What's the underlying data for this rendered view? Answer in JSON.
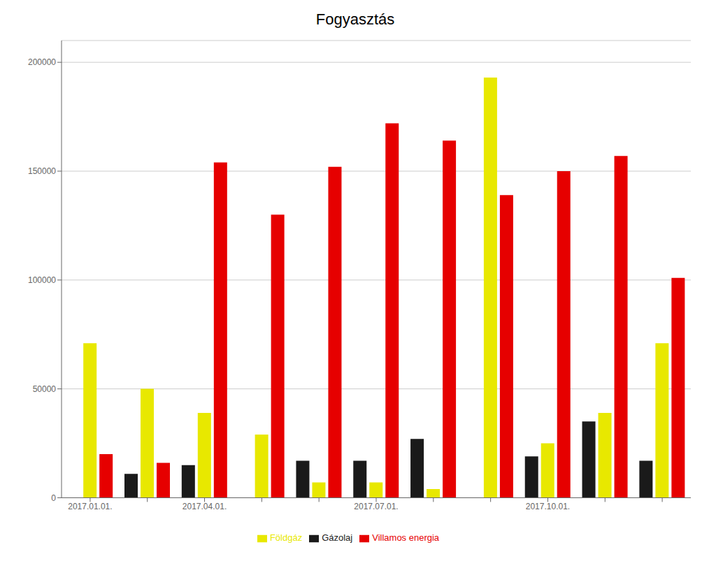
{
  "chart_data": {
    "type": "bar",
    "title": "Fogyasztás",
    "categories": [
      "2017.01.01.",
      null,
      "2017.04.01.",
      null,
      null,
      "2017.07.01.",
      null,
      null,
      "2017.10.01.",
      null,
      null
    ],
    "series": [
      {
        "name": "Gázolaj",
        "color": "#1a1a1a",
        "values": [
          0,
          11000,
          15000,
          0,
          17000,
          17000,
          27000,
          0,
          19000,
          35000,
          17000
        ]
      },
      {
        "name": "Földgáz",
        "color": "#e8e800",
        "values": [
          71000,
          50000,
          39000,
          29000,
          7000,
          7000,
          4000,
          193000,
          25000,
          39000,
          71000
        ]
      },
      {
        "name": "Villamos energia",
        "color": "#e60000",
        "values": [
          20000,
          16000,
          154000,
          130000,
          152000,
          172000,
          164000,
          139000,
          150000,
          157000,
          101000
        ]
      }
    ],
    "ylim": [
      0,
      210000
    ],
    "yticks": [
      0,
      50000,
      100000,
      150000,
      200000
    ],
    "grid": true,
    "legend": "bottom"
  }
}
